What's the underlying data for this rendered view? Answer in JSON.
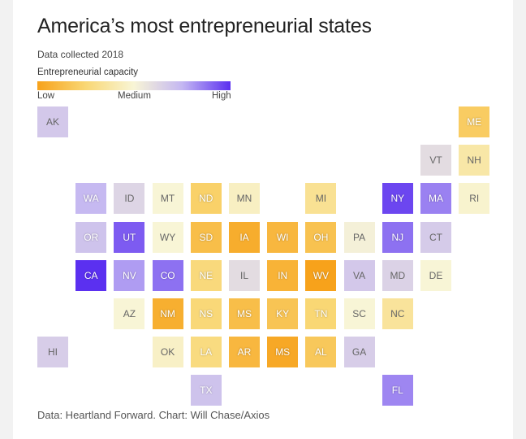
{
  "header": {
    "title": "America’s most entrepreneurial states",
    "subtitle": "Data collected 2018"
  },
  "legend": {
    "title": "Entrepreneurial capacity",
    "low_label": "Low",
    "medium_label": "Medium",
    "high_label": "High",
    "gradient": [
      "#f7a21b",
      "#f9d774",
      "#f8f5d6",
      "#c4b7f2",
      "#5b30f0"
    ]
  },
  "footer": {
    "source": "Data: Heartland Forward. Chart: Will Chase/Axios"
  },
  "map": {
    "type": "tile-grid-map",
    "color_scale": [
      "#f7a21b",
      "#f9d774",
      "#f8f5d6",
      "#c4b7f2",
      "#5b30f0"
    ],
    "states": [
      {
        "abbr": "AK",
        "level": 0.68,
        "col": 0,
        "row": 0
      },
      {
        "abbr": "ME",
        "level": 0.2,
        "col": 11,
        "row": 0
      },
      {
        "abbr": "VT",
        "level": 0.6,
        "col": 10,
        "row": 1
      },
      {
        "abbr": "NH",
        "level": 0.38,
        "col": 11,
        "row": 1
      },
      {
        "abbr": "WA",
        "level": 0.74,
        "col": 1,
        "row": 2
      },
      {
        "abbr": "ID",
        "level": 0.63,
        "col": 2,
        "row": 2
      },
      {
        "abbr": "MT",
        "level": 0.5,
        "col": 3,
        "row": 2
      },
      {
        "abbr": "ND",
        "level": 0.22,
        "col": 4,
        "row": 2
      },
      {
        "abbr": "MN",
        "level": 0.45,
        "col": 5,
        "row": 2
      },
      {
        "abbr": "MI",
        "level": 0.33,
        "col": 7,
        "row": 2
      },
      {
        "abbr": "NY",
        "level": 0.96,
        "col": 9,
        "row": 2
      },
      {
        "abbr": "MA",
        "level": 0.85,
        "col": 10,
        "row": 2
      },
      {
        "abbr": "RI",
        "level": 0.48,
        "col": 11,
        "row": 2
      },
      {
        "abbr": "OR",
        "level": 0.7,
        "col": 1,
        "row": 3
      },
      {
        "abbr": "UT",
        "level": 0.92,
        "col": 2,
        "row": 3
      },
      {
        "abbr": "WY",
        "level": 0.5,
        "col": 3,
        "row": 3
      },
      {
        "abbr": "SD",
        "level": 0.13,
        "col": 4,
        "row": 3
      },
      {
        "abbr": "IA",
        "level": 0.05,
        "col": 5,
        "row": 3
      },
      {
        "abbr": "WI",
        "level": 0.1,
        "col": 6,
        "row": 3
      },
      {
        "abbr": "OH",
        "level": 0.15,
        "col": 7,
        "row": 3
      },
      {
        "abbr": "PA",
        "level": 0.52,
        "col": 8,
        "row": 3
      },
      {
        "abbr": "NJ",
        "level": 0.88,
        "col": 9,
        "row": 3
      },
      {
        "abbr": "CT",
        "level": 0.67,
        "col": 10,
        "row": 3
      },
      {
        "abbr": "CA",
        "level": 1.0,
        "col": 1,
        "row": 4
      },
      {
        "abbr": "NV",
        "level": 0.8,
        "col": 2,
        "row": 4
      },
      {
        "abbr": "CO",
        "level": 0.88,
        "col": 3,
        "row": 4
      },
      {
        "abbr": "NE",
        "level": 0.27,
        "col": 4,
        "row": 4
      },
      {
        "abbr": "IL",
        "level": 0.6,
        "col": 5,
        "row": 4
      },
      {
        "abbr": "IN",
        "level": 0.08,
        "col": 6,
        "row": 4
      },
      {
        "abbr": "WV",
        "level": 0.0,
        "col": 7,
        "row": 4
      },
      {
        "abbr": "VA",
        "level": 0.68,
        "col": 8,
        "row": 4
      },
      {
        "abbr": "MD",
        "level": 0.64,
        "col": 9,
        "row": 4
      },
      {
        "abbr": "DE",
        "level": 0.5,
        "col": 10,
        "row": 4
      },
      {
        "abbr": "AZ",
        "level": 0.5,
        "col": 2,
        "row": 5
      },
      {
        "abbr": "NM",
        "level": 0.06,
        "col": 3,
        "row": 5
      },
      {
        "abbr": "NS",
        "level": 0.26,
        "col": 4,
        "row": 5
      },
      {
        "abbr": "MS",
        "level": 0.13,
        "col": 5,
        "row": 5
      },
      {
        "abbr": "KY",
        "level": 0.16,
        "col": 6,
        "row": 5
      },
      {
        "abbr": "TN",
        "level": 0.25,
        "col": 7,
        "row": 5
      },
      {
        "abbr": "SC",
        "level": 0.5,
        "col": 8,
        "row": 5
      },
      {
        "abbr": "NC",
        "level": 0.35,
        "col": 9,
        "row": 5
      },
      {
        "abbr": "HI",
        "level": 0.66,
        "col": 0,
        "row": 6
      },
      {
        "abbr": "OK",
        "level": 0.46,
        "col": 3,
        "row": 6
      },
      {
        "abbr": "LA",
        "level": 0.28,
        "col": 4,
        "row": 6
      },
      {
        "abbr": "AR",
        "level": 0.1,
        "col": 5,
        "row": 6
      },
      {
        "abbr": "MS",
        "level": 0.03,
        "col": 6,
        "row": 6
      },
      {
        "abbr": "AL",
        "level": 0.18,
        "col": 7,
        "row": 6
      },
      {
        "abbr": "GA",
        "level": 0.66,
        "col": 8,
        "row": 6
      },
      {
        "abbr": "TX",
        "level": 0.7,
        "col": 4,
        "row": 7
      },
      {
        "abbr": "FL",
        "level": 0.84,
        "col": 9,
        "row": 7
      }
    ]
  }
}
